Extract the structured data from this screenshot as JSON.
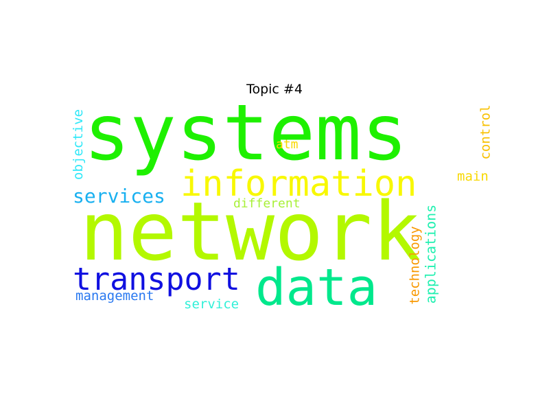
{
  "chart_data": {
    "type": "wordcloud",
    "title": "Topic #4",
    "words": [
      {
        "text": "systems",
        "weight": 1.0,
        "color": "#1ef000",
        "orientation": "horizontal"
      },
      {
        "text": "network",
        "weight": 1.0,
        "color": "#b3f800",
        "orientation": "horizontal"
      },
      {
        "text": "information",
        "weight": 0.5,
        "color": "#f8f800",
        "orientation": "horizontal"
      },
      {
        "text": "data",
        "weight": 0.85,
        "color": "#00e88c",
        "orientation": "horizontal"
      },
      {
        "text": "transport",
        "weight": 0.45,
        "color": "#1010e0",
        "orientation": "horizontal"
      },
      {
        "text": "services",
        "weight": 0.28,
        "color": "#18b0f0",
        "orientation": "horizontal"
      },
      {
        "text": "management",
        "weight": 0.22,
        "color": "#2878f0",
        "orientation": "horizontal"
      },
      {
        "text": "service",
        "weight": 0.2,
        "color": "#30f0d8",
        "orientation": "horizontal"
      },
      {
        "text": "different",
        "weight": 0.2,
        "color": "#a8f038",
        "orientation": "horizontal"
      },
      {
        "text": "atm",
        "weight": 0.18,
        "color": "#f8d800",
        "orientation": "horizontal"
      },
      {
        "text": "main",
        "weight": 0.2,
        "color": "#f8d800",
        "orientation": "horizontal"
      },
      {
        "text": "objective",
        "weight": 0.2,
        "color": "#30e8f8",
        "orientation": "vertical"
      },
      {
        "text": "control",
        "weight": 0.2,
        "color": "#f8c000",
        "orientation": "vertical"
      },
      {
        "text": "technology",
        "weight": 0.2,
        "color": "#f89800",
        "orientation": "vertical"
      },
      {
        "text": "applications",
        "weight": 0.22,
        "color": "#20f0b0",
        "orientation": "vertical"
      }
    ]
  }
}
